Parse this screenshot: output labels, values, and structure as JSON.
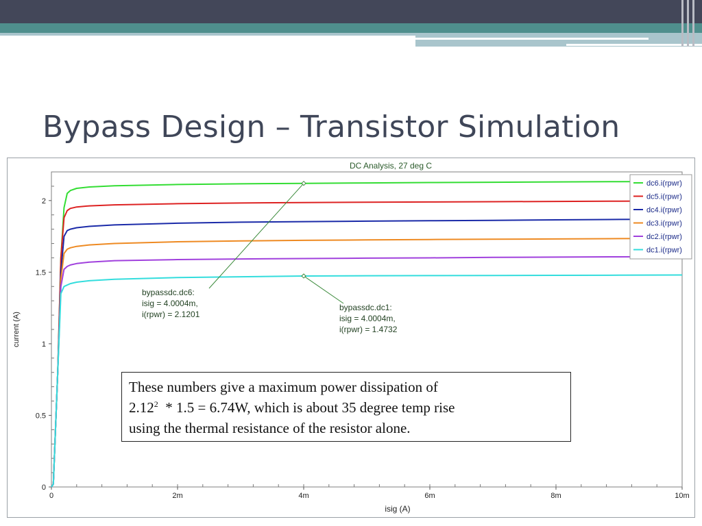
{
  "slide": {
    "title": "Bypass Design – Transistor Simulation",
    "colors": {
      "title": "#3f4658",
      "header_dark": "#434759",
      "header_teal": "#4f8f8d",
      "header_light": "#a9c5cc"
    }
  },
  "note": {
    "line1": "These numbers give a maximum power dissipation of",
    "line2_base": "2.12",
    "line2_sup": "2",
    "line2_rest": "  * 1.5 = 6.74W, which is about 35 degree temp rise",
    "line3": "using the thermal resistance of the resistor alone."
  },
  "chart_data": {
    "type": "line",
    "title": "DC Analysis, 27 deg C",
    "xlabel": "isig (A)",
    "ylabel": "current (A)",
    "xlim": [
      0,
      0.01
    ],
    "ylim": [
      0,
      2.2
    ],
    "grid": true,
    "legend_position": "top-right",
    "x_ticks": [
      {
        "value": 0,
        "label": "0"
      },
      {
        "value": 0.002,
        "label": "2m"
      },
      {
        "value": 0.004,
        "label": "4m"
      },
      {
        "value": 0.006,
        "label": "6m"
      },
      {
        "value": 0.008,
        "label": "8m"
      },
      {
        "value": 0.01,
        "label": "10m"
      }
    ],
    "y_ticks": [
      {
        "value": 0,
        "label": "0"
      },
      {
        "value": 0.5,
        "label": "0.5"
      },
      {
        "value": 1,
        "label": "1"
      },
      {
        "value": 1.5,
        "label": "1.5"
      },
      {
        "value": 2,
        "label": "2"
      }
    ],
    "x": [
      0,
      3e-05,
      0.0001,
      0.00015,
      0.0002,
      0.00025,
      0.0003,
      0.0004,
      0.0006,
      0.001,
      0.002,
      0.003,
      0.004,
      0.005,
      0.006,
      0.007,
      0.008,
      0.009,
      0.01
    ],
    "series": [
      {
        "name": "dc6.i(rpwr)",
        "color": "#33dd33",
        "values": [
          0,
          0.02,
          0.8,
          1.6,
          1.95,
          2.05,
          2.07,
          2.085,
          2.095,
          2.103,
          2.112,
          2.117,
          2.12,
          2.123,
          2.126,
          2.128,
          2.13,
          2.132,
          2.133
        ]
      },
      {
        "name": "dc5.i(rpwr)",
        "color": "#dd2222",
        "values": [
          0,
          0.02,
          0.8,
          1.6,
          1.88,
          1.93,
          1.945,
          1.955,
          1.963,
          1.97,
          1.978,
          1.983,
          1.986,
          1.988,
          1.99,
          1.992,
          1.994,
          1.996,
          1.997
        ]
      },
      {
        "name": "dc4.i(rpwr)",
        "color": "#1a2aa8",
        "values": [
          0,
          0.02,
          0.8,
          1.5,
          1.75,
          1.79,
          1.8,
          1.81,
          1.82,
          1.83,
          1.842,
          1.849,
          1.853,
          1.856,
          1.859,
          1.862,
          1.865,
          1.868,
          1.87
        ]
      },
      {
        "name": "dc3.i(rpwr)",
        "color": "#ee8a22",
        "values": [
          0,
          0.02,
          0.8,
          1.45,
          1.63,
          1.66,
          1.67,
          1.68,
          1.69,
          1.7,
          1.712,
          1.718,
          1.722,
          1.725,
          1.728,
          1.73,
          1.732,
          1.734,
          1.736
        ]
      },
      {
        "name": "dc2.i(rpwr)",
        "color": "#a040dd",
        "values": [
          0,
          0.02,
          0.8,
          1.4,
          1.52,
          1.54,
          1.55,
          1.56,
          1.57,
          1.58,
          1.588,
          1.592,
          1.595,
          1.598,
          1.6,
          1.603,
          1.605,
          1.607,
          1.609
        ]
      },
      {
        "name": "dc1.i(rpwr)",
        "color": "#33dddd",
        "values": [
          0,
          0.02,
          0.8,
          1.35,
          1.4,
          1.41,
          1.42,
          1.43,
          1.44,
          1.45,
          1.462,
          1.468,
          1.473,
          1.475,
          1.476,
          1.477,
          1.478,
          1.479,
          1.48
        ]
      }
    ],
    "annotations": [
      {
        "lines": [
          "bypassdc.dc6:",
          "isig = 4.0004m,",
          "i(rpwr) = 2.1201"
        ],
        "x": 0.0040004,
        "y": 2.1201
      },
      {
        "lines": [
          "bypassdc.dc1:",
          "isig = 4.0004m,",
          "i(rpwr) = 1.4732"
        ],
        "x": 0.0040004,
        "y": 1.4732
      }
    ]
  }
}
